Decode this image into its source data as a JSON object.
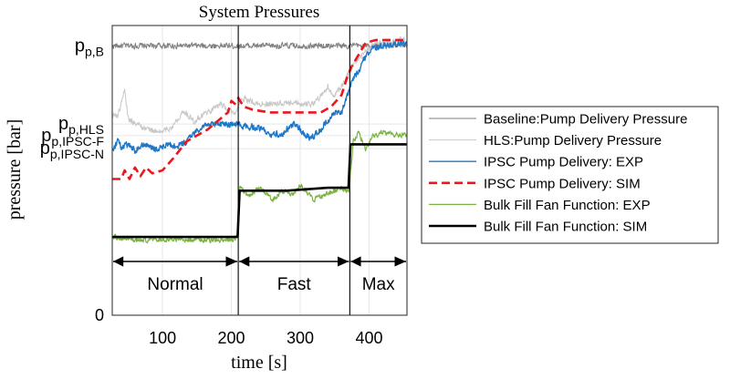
{
  "chart_data": {
    "type": "line",
    "title": "System Pressures",
    "xlabel": "time [s]",
    "ylabel": "pressure [bar]",
    "xlim": [
      27,
      455
    ],
    "ylim": [
      0,
      100
    ],
    "x_ticks": [
      100,
      200,
      300,
      400
    ],
    "y_ticks": [
      0
    ],
    "grid": true,
    "legend_position": "right",
    "y_tick_labels_text": [
      {
        "label": "p",
        "sub": "p,B",
        "value": 93
      },
      {
        "label": "p",
        "sub": "p,HLS",
        "value": 66
      },
      {
        "label": "p",
        "sub": "p,IPSC-F",
        "value": 62
      },
      {
        "label": "p",
        "sub": "p,IPSC-N",
        "value": 57.5
      }
    ],
    "phase_boundaries": [
      27,
      210,
      372,
      455
    ],
    "phases": [
      "Normal",
      "Fast",
      "Max"
    ],
    "series": [
      {
        "name": "Baseline:Pump Delivery Pressure",
        "color": "#808080",
        "style": "solid",
        "width": 1.0,
        "points": [
          [
            27,
            93
          ],
          [
            455,
            93
          ]
        ],
        "noise": 1.4
      },
      {
        "name": "HLS:Pump Delivery Pressure",
        "color": "#c8c8c8",
        "style": "solid",
        "width": 1.0,
        "points": [
          [
            27,
            69
          ],
          [
            35,
            69
          ],
          [
            40,
            73
          ],
          [
            45,
            78
          ],
          [
            50,
            68
          ],
          [
            70,
            65
          ],
          [
            95,
            63
          ],
          [
            115,
            65
          ],
          [
            130,
            71
          ],
          [
            145,
            67
          ],
          [
            165,
            70
          ],
          [
            185,
            73
          ],
          [
            205,
            69
          ],
          [
            215,
            75
          ],
          [
            240,
            73
          ],
          [
            270,
            73
          ],
          [
            300,
            73
          ],
          [
            320,
            73
          ],
          [
            340,
            79
          ],
          [
            348,
            75
          ],
          [
            365,
            81
          ],
          [
            375,
            86
          ],
          [
            390,
            90
          ],
          [
            410,
            94
          ],
          [
            455,
            95
          ]
        ],
        "noise": 1.5
      },
      {
        "name": "IPSC Pump Delivery: EXP",
        "color": "#1f77c8",
        "style": "solid",
        "width": 1.4,
        "points": [
          [
            27,
            57
          ],
          [
            35,
            60
          ],
          [
            40,
            58
          ],
          [
            50,
            59
          ],
          [
            60,
            57
          ],
          [
            75,
            59
          ],
          [
            90,
            57
          ],
          [
            110,
            59
          ],
          [
            120,
            58
          ],
          [
            135,
            60
          ],
          [
            150,
            64
          ],
          [
            165,
            66
          ],
          [
            190,
            66
          ],
          [
            210,
            66
          ],
          [
            220,
            65
          ],
          [
            240,
            65
          ],
          [
            255,
            62
          ],
          [
            275,
            63
          ],
          [
            290,
            66
          ],
          [
            300,
            64
          ],
          [
            315,
            61
          ],
          [
            325,
            63
          ],
          [
            340,
            67
          ],
          [
            350,
            70
          ],
          [
            360,
            70
          ],
          [
            370,
            77
          ],
          [
            375,
            81
          ],
          [
            382,
            83
          ],
          [
            392,
            88
          ],
          [
            405,
            92
          ],
          [
            420,
            93
          ],
          [
            455,
            94
          ]
        ],
        "noise": 1.5
      },
      {
        "name": "IPSC Pump Delivery: SIM",
        "color": "#e8191e",
        "style": "dashed",
        "width": 2.6,
        "points": [
          [
            27,
            47
          ],
          [
            40,
            47
          ],
          [
            45,
            50
          ],
          [
            52,
            47
          ],
          [
            60,
            51
          ],
          [
            68,
            48
          ],
          [
            76,
            51
          ],
          [
            85,
            49
          ],
          [
            100,
            50
          ],
          [
            115,
            54
          ],
          [
            125,
            57
          ],
          [
            135,
            60
          ],
          [
            150,
            62
          ],
          [
            165,
            64
          ],
          [
            175,
            66
          ],
          [
            185,
            68
          ],
          [
            195,
            70
          ],
          [
            200,
            74
          ],
          [
            205,
            73
          ],
          [
            210,
            75
          ],
          [
            218,
            72
          ],
          [
            230,
            71
          ],
          [
            255,
            70
          ],
          [
            280,
            70
          ],
          [
            300,
            70
          ],
          [
            330,
            70
          ],
          [
            345,
            72
          ],
          [
            360,
            76
          ],
          [
            368,
            82
          ],
          [
            375,
            86
          ],
          [
            385,
            90
          ],
          [
            395,
            94
          ],
          [
            410,
            95
          ],
          [
            455,
            95
          ]
        ],
        "noise": 0
      },
      {
        "name": "Bulk Fill Fan Function: EXP",
        "color": "#7cb342",
        "style": "solid",
        "width": 1.2,
        "points": [
          [
            27,
            27
          ],
          [
            60,
            26
          ],
          [
            100,
            26
          ],
          [
            150,
            26
          ],
          [
            200,
            26
          ],
          [
            210,
            27
          ],
          [
            212,
            44
          ],
          [
            225,
            41
          ],
          [
            240,
            44
          ],
          [
            260,
            40
          ],
          [
            275,
            43
          ],
          [
            290,
            42
          ],
          [
            300,
            45
          ],
          [
            320,
            40
          ],
          [
            340,
            42
          ],
          [
            360,
            44
          ],
          [
            370,
            42
          ],
          [
            372,
            46
          ],
          [
            377,
            60
          ],
          [
            385,
            63
          ],
          [
            395,
            57
          ],
          [
            405,
            62
          ],
          [
            420,
            63
          ],
          [
            455,
            62
          ]
        ],
        "noise": 1.2
      },
      {
        "name": "Bulk Fill Fan Function: SIM",
        "color": "#000000",
        "style": "solid",
        "width": 2.6,
        "points": [
          [
            27,
            27
          ],
          [
            209,
            27
          ],
          [
            212,
            43
          ],
          [
            230,
            43
          ],
          [
            280,
            43
          ],
          [
            340,
            44
          ],
          [
            370,
            44
          ],
          [
            373,
            59
          ],
          [
            455,
            59
          ]
        ],
        "noise": 0
      }
    ]
  }
}
